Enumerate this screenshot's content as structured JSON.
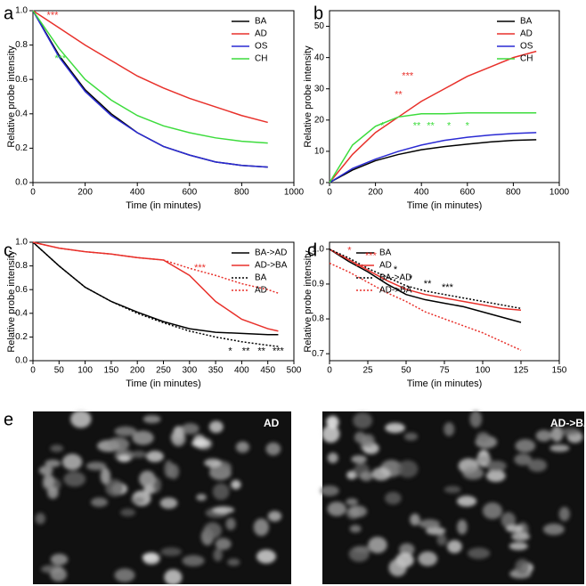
{
  "chart_data": [
    {
      "type": "line",
      "label": "a",
      "x_label": "Time (in minutes)",
      "y_label": "Relative probe intensity",
      "x": [
        0,
        100,
        200,
        300,
        400,
        500,
        600,
        700,
        800,
        900
      ],
      "series": [
        {
          "name": "BA",
          "color": "#000000",
          "dash": "solid",
          "values": [
            1.0,
            0.74,
            0.54,
            0.4,
            0.29,
            0.21,
            0.16,
            0.12,
            0.1,
            0.09
          ]
        },
        {
          "name": "AD",
          "color": "#e8312b",
          "dash": "solid",
          "values": [
            1.0,
            0.9,
            0.8,
            0.71,
            0.62,
            0.55,
            0.49,
            0.44,
            0.39,
            0.35
          ]
        },
        {
          "name": "OS",
          "color": "#2a2ad4",
          "dash": "solid",
          "values": [
            1.0,
            0.73,
            0.53,
            0.39,
            0.29,
            0.21,
            0.16,
            0.12,
            0.1,
            0.09
          ]
        },
        {
          "name": "CH",
          "color": "#3ddc3d",
          "dash": "solid",
          "values": [
            1.0,
            0.78,
            0.6,
            0.48,
            0.39,
            0.33,
            0.29,
            0.26,
            0.24,
            0.23
          ]
        }
      ],
      "xlim": [
        0,
        1000
      ],
      "xticks": [
        0,
        200,
        400,
        600,
        800,
        1000
      ],
      "ylim": [
        0,
        1.0
      ],
      "yticks": [
        {
          "value": 0,
          "label": "0.0"
        },
        0.2,
        0.4,
        0.6,
        0.8,
        {
          "value": 1,
          "label": "1.0"
        }
      ],
      "legend": "upper right",
      "annotations": [
        {
          "text": "***",
          "x": 75,
          "y": 0.97,
          "color": "#e8312b"
        },
        {
          "text": "***",
          "x": 105,
          "y": 0.72,
          "color": "#3ddc3d"
        }
      ]
    },
    {
      "type": "line",
      "label": "b",
      "x_label": "Time (in minutes)",
      "y_label": "Relative probe intensity",
      "x": [
        0,
        100,
        200,
        300,
        400,
        500,
        600,
        700,
        800,
        900
      ],
      "series": [
        {
          "name": "BA",
          "color": "#000000",
          "dash": "solid",
          "values": [
            0,
            4,
            7,
            9,
            10.5,
            11.5,
            12.3,
            13,
            13.5,
            13.7
          ]
        },
        {
          "name": "AD",
          "color": "#e8312b",
          "dash": "solid",
          "values": [
            0,
            9,
            16,
            21,
            26,
            30,
            34,
            37,
            40,
            42
          ]
        },
        {
          "name": "OS",
          "color": "#2a2ad4",
          "dash": "solid",
          "values": [
            0,
            4.5,
            7.5,
            10,
            12,
            13.5,
            14.5,
            15.2,
            15.7,
            16
          ]
        },
        {
          "name": "CH",
          "color": "#3ddc3d",
          "dash": "solid",
          "values": [
            0,
            12,
            18,
            21,
            22,
            22,
            22.3,
            22.3,
            22.3,
            22.3
          ]
        }
      ],
      "xlim": [
        0,
        1000
      ],
      "xticks": [
        0,
        200,
        400,
        600,
        800,
        1000
      ],
      "ylim": [
        0,
        55
      ],
      "yticks": [
        0,
        10,
        20,
        30,
        40,
        50
      ],
      "legend": "upper right",
      "annotations": [
        {
          "text": "***",
          "x": 340,
          "y": 34,
          "color": "#e8312b"
        },
        {
          "text": "**",
          "x": 300,
          "y": 28,
          "color": "#e8312b"
        },
        {
          "text": "*",
          "x": 230,
          "y": 18,
          "color": "#3ddc3d"
        },
        {
          "text": "**",
          "x": 380,
          "y": 18,
          "color": "#3ddc3d"
        },
        {
          "text": "**",
          "x": 440,
          "y": 18,
          "color": "#3ddc3d"
        },
        {
          "text": "*",
          "x": 520,
          "y": 18,
          "color": "#3ddc3d"
        },
        {
          "text": "*",
          "x": 600,
          "y": 18,
          "color": "#3ddc3d"
        }
      ]
    },
    {
      "type": "line",
      "label": "c",
      "x_label": "Time (in minutes)",
      "y_label": "Relative probe intensity",
      "x": [
        0,
        50,
        100,
        150,
        200,
        250,
        300,
        350,
        400,
        450,
        470
      ],
      "series": [
        {
          "name": "BA->AD",
          "color": "#000000",
          "dash": "solid",
          "values": [
            1.0,
            0.8,
            0.62,
            0.5,
            0.41,
            0.33,
            0.27,
            0.24,
            0.23,
            0.22,
            0.22
          ]
        },
        {
          "name": "AD->BA",
          "color": "#e8312b",
          "dash": "solid",
          "values": [
            1.0,
            0.95,
            0.92,
            0.9,
            0.87,
            0.85,
            0.72,
            0.5,
            0.35,
            0.27,
            0.25
          ]
        },
        {
          "name": "BA",
          "color": "#000000",
          "dash": "dotted",
          "values": [
            1.0,
            0.8,
            0.62,
            0.5,
            0.4,
            0.32,
            0.25,
            0.2,
            0.16,
            0.13,
            0.12
          ]
        },
        {
          "name": "AD",
          "color": "#e8312b",
          "dash": "dotted",
          "values": [
            1.0,
            0.95,
            0.92,
            0.9,
            0.87,
            0.85,
            0.78,
            0.72,
            0.65,
            0.6,
            0.57
          ]
        }
      ],
      "xlim": [
        0,
        500
      ],
      "xticks": [
        0,
        50,
        100,
        150,
        200,
        250,
        300,
        350,
        400,
        450,
        500
      ],
      "ylim": [
        0,
        1.0
      ],
      "yticks": [
        {
          "value": 0,
          "label": "0.0"
        },
        0.2,
        0.4,
        0.6,
        0.8,
        {
          "value": 1,
          "label": "1.0"
        }
      ],
      "legend": "upper right",
      "annotations": [
        {
          "text": "***",
          "x": 320,
          "y": 0.78,
          "color": "#e8312b"
        },
        {
          "text": "*",
          "x": 378,
          "y": 0.08,
          "color": "#000000"
        },
        {
          "text": "**",
          "x": 408,
          "y": 0.08,
          "color": "#000000"
        },
        {
          "text": "**",
          "x": 438,
          "y": 0.08,
          "color": "#000000"
        },
        {
          "text": "***",
          "x": 470,
          "y": 0.08,
          "color": "#000000"
        }
      ]
    },
    {
      "type": "line",
      "label": "d",
      "x_label": "Time (in minutes)",
      "y_label": "Relative probe intensity",
      "x": [
        0,
        12.5,
        25,
        37.5,
        50,
        62.5,
        75,
        87.5,
        100,
        112.5,
        125
      ],
      "series": [
        {
          "name": "BA",
          "color": "#000000",
          "dash": "solid",
          "values": [
            1.0,
            0.965,
            0.935,
            0.9,
            0.87,
            0.855,
            0.845,
            0.835,
            0.82,
            0.805,
            0.79
          ]
        },
        {
          "name": "AD",
          "color": "#e8312b",
          "dash": "solid",
          "values": [
            1.0,
            0.97,
            0.94,
            0.91,
            0.885,
            0.87,
            0.86,
            0.85,
            0.84,
            0.83,
            0.825
          ]
        },
        {
          "name": "BA->AD",
          "color": "#000000",
          "dash": "dotted",
          "values": [
            1.0,
            0.975,
            0.945,
            0.92,
            0.895,
            0.88,
            0.87,
            0.86,
            0.85,
            0.84,
            0.83
          ]
        },
        {
          "name": "AD->BA",
          "color": "#e8312b",
          "dash": "dotted",
          "values": [
            0.96,
            0.935,
            0.905,
            0.875,
            0.85,
            0.82,
            0.8,
            0.78,
            0.76,
            0.735,
            0.71
          ]
        }
      ],
      "xlim": [
        0,
        150
      ],
      "xticks": [
        0,
        25,
        50,
        75,
        100,
        125,
        150
      ],
      "ylim": [
        0.68,
        1.02
      ],
      "yticks": [
        0.7,
        0.8,
        0.9,
        {
          "value": 1,
          "label": "1.0"
        }
      ],
      "legend": "upper center",
      "annotations": [
        {
          "text": "*",
          "x": 13,
          "y": 0.995,
          "color": "#e8312b"
        },
        {
          "text": "***",
          "x": 27,
          "y": 0.98,
          "color": "#e8312b"
        },
        {
          "text": "*",
          "x": 43,
          "y": 0.94,
          "color": "#000000"
        },
        {
          "text": "*",
          "x": 53,
          "y": 0.915,
          "color": "#000000"
        },
        {
          "text": "**",
          "x": 64,
          "y": 0.9,
          "color": "#000000"
        },
        {
          "text": "***",
          "x": 77,
          "y": 0.89,
          "color": "#000000"
        }
      ]
    }
  ],
  "images": {
    "label": "e",
    "panels": [
      {
        "label": "AD"
      },
      {
        "label": "AD->BA"
      }
    ]
  }
}
